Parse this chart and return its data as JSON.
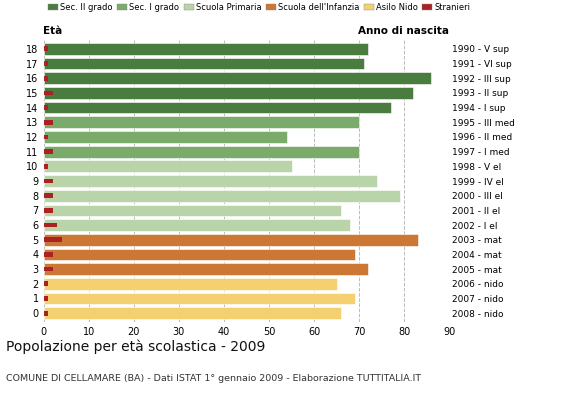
{
  "ages": [
    18,
    17,
    16,
    15,
    14,
    13,
    12,
    11,
    10,
    9,
    8,
    7,
    6,
    5,
    4,
    3,
    2,
    1,
    0
  ],
  "years": [
    "1990 - V sup",
    "1991 - VI sup",
    "1992 - III sup",
    "1993 - II sup",
    "1994 - I sup",
    "1995 - III med",
    "1996 - II med",
    "1997 - I med",
    "1998 - V el",
    "1999 - IV el",
    "2000 - III el",
    "2001 - II el",
    "2002 - I el",
    "2003 - mat",
    "2004 - mat",
    "2005 - mat",
    "2006 - nido",
    "2007 - nido",
    "2008 - nido"
  ],
  "bar_values": [
    72,
    71,
    86,
    82,
    77,
    70,
    54,
    70,
    55,
    74,
    79,
    66,
    68,
    83,
    69,
    72,
    65,
    69,
    66
  ],
  "stranieri": [
    1,
    1,
    1,
    2,
    1,
    2,
    1,
    2,
    1,
    2,
    2,
    2,
    3,
    4,
    2,
    2,
    1,
    1,
    1
  ],
  "bar_colors": [
    "#4a7c40",
    "#4a7c40",
    "#4a7c40",
    "#4a7c40",
    "#4a7c40",
    "#7aab6a",
    "#7aab6a",
    "#7aab6a",
    "#b8d4a8",
    "#b8d4a8",
    "#b8d4a8",
    "#b8d4a8",
    "#b8d4a8",
    "#cc7733",
    "#cc7733",
    "#cc7733",
    "#f5d070",
    "#f5d070",
    "#f5d070"
  ],
  "legend_labels": [
    "Sec. II grado",
    "Sec. I grado",
    "Scuola Primaria",
    "Scuola dell'Infanzia",
    "Asilo Nido",
    "Stranieri"
  ],
  "legend_colors": [
    "#4a7c40",
    "#7aab6a",
    "#b8d4a8",
    "#cc7733",
    "#f5d070",
    "#aa2222"
  ],
  "stranieri_color": "#aa2222",
  "title": "Popolazione per età scolastica - 2009",
  "subtitle": "COMUNE DI CELLAMARE (BA) - Dati ISTAT 1° gennaio 2009 - Elaborazione TUTTITALIA.IT",
  "xlabel_left": "Età",
  "xlabel_right": "Anno di nascita",
  "xlim": [
    0,
    90
  ],
  "xticks": [
    0,
    10,
    20,
    30,
    40,
    50,
    60,
    70,
    80,
    90
  ],
  "bg_color": "#ffffff",
  "grid_color": "#bbbbbb",
  "bar_height": 0.8
}
